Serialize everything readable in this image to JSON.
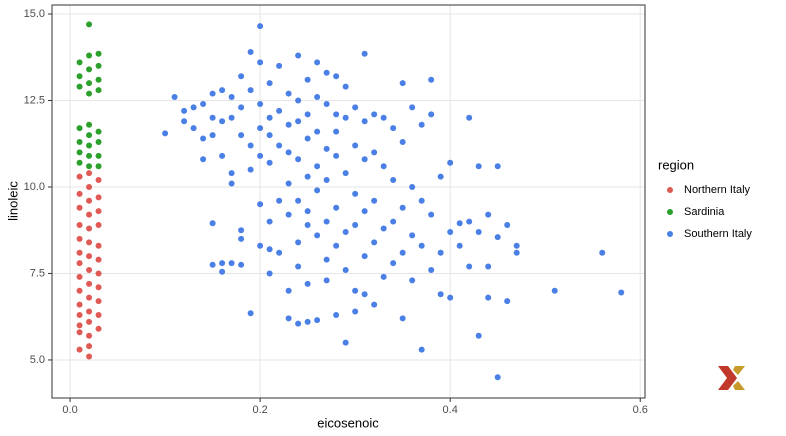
{
  "chart_data": {
    "type": "scatter",
    "x_label": "eicosenoic",
    "y_label": "linoleic",
    "legend_title": "region",
    "legend_position": "right",
    "grid": true,
    "xlim": [
      -0.019,
      0.605
    ],
    "ylim": [
      3.9,
      15.26
    ],
    "xticks": [
      {
        "value": 0,
        "label": "0.0"
      },
      {
        "value": 0.2,
        "label": "0.2"
      },
      {
        "value": 0.4,
        "label": "0.4"
      },
      {
        "value": 0.6,
        "label": "0.6"
      }
    ],
    "yticks": [
      {
        "value": 5,
        "label": "5.0"
      },
      7.5,
      {
        "value": 10,
        "label": "10.0"
      },
      12.5,
      {
        "value": 15,
        "label": "15.0"
      }
    ],
    "series": [
      {
        "name": "Northern Italy",
        "color": "#e05a55",
        "x": [
          0.01,
          0.01,
          0.01,
          0.01,
          0.01,
          0.01,
          0.01,
          0.01,
          0.01,
          0.01,
          0.01,
          0.01,
          0.01,
          0.01,
          0.02,
          0.02,
          0.02,
          0.02,
          0.02,
          0.02,
          0.02,
          0.02,
          0.02,
          0.02,
          0.02,
          0.02,
          0.02,
          0.02,
          0.02,
          0.03,
          0.03,
          0.03,
          0.03,
          0.03,
          0.03,
          0.03,
          0.03,
          0.03,
          0.03,
          0.03
        ],
        "y": [
          10.3,
          9.8,
          9.4,
          8.9,
          8.5,
          8.1,
          7.8,
          7.4,
          7.0,
          6.6,
          6.3,
          6.0,
          5.8,
          5.3,
          10.4,
          10.0,
          9.6,
          9.2,
          8.8,
          8.4,
          8.0,
          7.6,
          7.2,
          6.8,
          6.4,
          6.1,
          5.7,
          5.4,
          5.1,
          10.2,
          9.7,
          9.3,
          8.9,
          8.3,
          7.9,
          7.5,
          7.1,
          6.7,
          6.3,
          5.9
        ]
      },
      {
        "name": "Sardinia",
        "color": "#2ca02c",
        "x": [
          0.01,
          0.01,
          0.01,
          0.01,
          0.01,
          0.01,
          0.01,
          0.02,
          0.02,
          0.02,
          0.02,
          0.02,
          0.02,
          0.02,
          0.02,
          0.02,
          0.02,
          0.03,
          0.03,
          0.03,
          0.03,
          0.03,
          0.03,
          0.03,
          0.03
        ],
        "y": [
          13.6,
          13.2,
          12.9,
          11.7,
          11.3,
          11.0,
          10.7,
          14.7,
          13.8,
          13.4,
          13.0,
          12.7,
          11.8,
          11.5,
          11.2,
          10.9,
          10.6,
          13.85,
          13.5,
          13.1,
          12.8,
          11.6,
          11.3,
          10.9,
          10.6
        ]
      },
      {
        "name": "Southern Italy",
        "color": "#4a7fe6",
        "x": [
          0.1,
          0.11,
          0.12,
          0.12,
          0.13,
          0.13,
          0.14,
          0.14,
          0.14,
          0.15,
          0.15,
          0.15,
          0.15,
          0.15,
          0.16,
          0.16,
          0.16,
          0.16,
          0.16,
          0.17,
          0.17,
          0.17,
          0.17,
          0.17,
          0.18,
          0.18,
          0.18,
          0.18,
          0.18,
          0.18,
          0.19,
          0.19,
          0.19,
          0.19,
          0.19,
          0.2,
          0.2,
          0.2,
          0.2,
          0.2,
          0.2,
          0.2,
          0.21,
          0.21,
          0.21,
          0.21,
          0.21,
          0.21,
          0.21,
          0.22,
          0.22,
          0.22,
          0.22,
          0.22,
          0.23,
          0.23,
          0.23,
          0.23,
          0.23,
          0.23,
          0.23,
          0.24,
          0.24,
          0.24,
          0.24,
          0.24,
          0.24,
          0.24,
          0.24,
          0.25,
          0.25,
          0.25,
          0.25,
          0.25,
          0.25,
          0.25,
          0.25,
          0.26,
          0.26,
          0.26,
          0.26,
          0.26,
          0.26,
          0.26,
          0.27,
          0.27,
          0.27,
          0.27,
          0.27,
          0.27,
          0.27,
          0.28,
          0.28,
          0.28,
          0.28,
          0.28,
          0.28,
          0.28,
          0.29,
          0.29,
          0.29,
          0.29,
          0.29,
          0.29,
          0.3,
          0.3,
          0.3,
          0.3,
          0.3,
          0.3,
          0.31,
          0.31,
          0.31,
          0.31,
          0.31,
          0.31,
          0.32,
          0.32,
          0.32,
          0.32,
          0.32,
          0.33,
          0.33,
          0.33,
          0.33,
          0.34,
          0.34,
          0.34,
          0.34,
          0.35,
          0.35,
          0.35,
          0.35,
          0.35,
          0.36,
          0.36,
          0.36,
          0.36,
          0.37,
          0.37,
          0.37,
          0.37,
          0.38,
          0.38,
          0.38,
          0.38,
          0.39,
          0.39,
          0.39,
          0.4,
          0.4,
          0.4,
          0.41,
          0.41,
          0.42,
          0.42,
          0.42,
          0.43,
          0.43,
          0.43,
          0.44,
          0.44,
          0.44,
          0.45,
          0.45,
          0.45,
          0.46,
          0.46,
          0.47,
          0.47,
          0.51,
          0.56,
          0.58
        ],
        "y": [
          11.55,
          12.6,
          12.2,
          11.9,
          12.3,
          11.7,
          12.4,
          11.4,
          10.8,
          12.7,
          12.0,
          11.5,
          8.95,
          7.75,
          12.8,
          11.9,
          10.9,
          7.8,
          7.55,
          12.6,
          12.0,
          10.4,
          10.1,
          7.8,
          13.2,
          12.3,
          11.5,
          8.75,
          8.5,
          7.75,
          13.9,
          12.8,
          11.2,
          10.5,
          6.35,
          14.65,
          13.6,
          12.4,
          11.7,
          10.9,
          9.5,
          8.3,
          13.0,
          12.0,
          11.5,
          10.7,
          9.0,
          8.2,
          7.5,
          13.5,
          12.2,
          11.2,
          9.6,
          8.1,
          12.7,
          11.8,
          11.0,
          10.1,
          9.2,
          7.0,
          6.2,
          13.8,
          12.5,
          11.9,
          10.8,
          9.6,
          8.4,
          7.7,
          6.05,
          13.1,
          12.1,
          11.4,
          10.3,
          9.3,
          8.9,
          7.2,
          6.1,
          13.6,
          12.6,
          11.6,
          10.6,
          9.9,
          8.6,
          6.15,
          13.3,
          12.4,
          11.1,
          10.2,
          9.0,
          7.9,
          7.3,
          13.2,
          12.1,
          11.6,
          10.9,
          9.4,
          8.3,
          6.3,
          12.9,
          12.0,
          10.4,
          8.7,
          7.6,
          5.5,
          12.3,
          11.2,
          9.8,
          8.9,
          7.0,
          6.4,
          13.85,
          11.9,
          10.8,
          9.3,
          8.0,
          6.9,
          12.1,
          11.0,
          9.6,
          8.4,
          6.6,
          12.0,
          10.6,
          8.8,
          7.4,
          11.7,
          10.2,
          9.0,
          7.8,
          13.0,
          11.3,
          9.4,
          8.1,
          6.2,
          12.3,
          10.0,
          8.6,
          7.3,
          11.8,
          9.6,
          8.3,
          5.3,
          13.1,
          12.1,
          9.2,
          7.6,
          10.3,
          8.1,
          6.9,
          10.7,
          8.7,
          6.8,
          8.95,
          8.3,
          12.0,
          9.0,
          7.7,
          10.6,
          8.7,
          5.7,
          9.2,
          7.7,
          6.8,
          10.6,
          8.55,
          4.5,
          8.9,
          6.7,
          8.3,
          8.1,
          7.0,
          8.1,
          6.95
        ]
      }
    ]
  }
}
